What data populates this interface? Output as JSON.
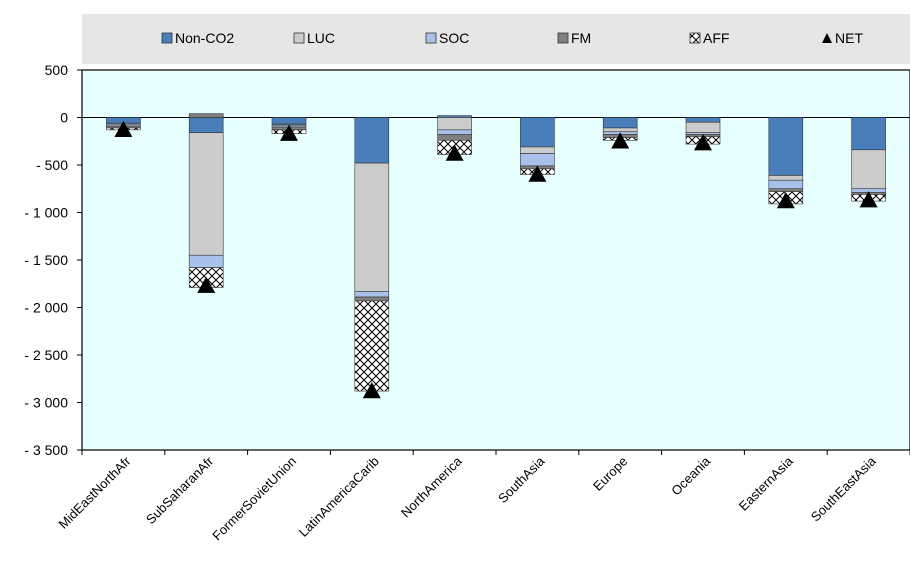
{
  "chart_data": {
    "type": "bar",
    "stacked": true,
    "categories": [
      "MidEastNorthAfr",
      "SubSaharanAfr",
      "FormerSovietUnion",
      "LatinAmericaCarib",
      "NorthAmerica",
      "SouthAsia",
      "Europe",
      "Oceania",
      "EasternAsia",
      "SouthEastAsia"
    ],
    "series": [
      {
        "name": "Non-CO2",
        "color": "#4a7ebb",
        "pattern": "solid",
        "values": [
          -60,
          -160,
          -70,
          -480,
          20,
          -310,
          -110,
          -50,
          -610,
          -340
        ]
      },
      {
        "name": "LUC",
        "color": "#cccccc",
        "pattern": "solid",
        "values": [
          -10,
          -1290,
          -10,
          -1350,
          -130,
          -70,
          -40,
          -110,
          -50,
          -410
        ]
      },
      {
        "name": "SOC",
        "color": "#a9c1ea",
        "pattern": "solid",
        "values": [
          -20,
          -130,
          -20,
          -60,
          -50,
          -130,
          -30,
          -20,
          -90,
          -40
        ]
      },
      {
        "name": "FM",
        "color": "#7f7f7f",
        "pattern": "solid",
        "values": [
          -20,
          40,
          -30,
          -40,
          -60,
          -30,
          -30,
          -20,
          -30,
          -20
        ]
      },
      {
        "name": "AFF",
        "color": "#ffffff",
        "pattern": "crosshatch",
        "values": [
          -20,
          -210,
          -40,
          -950,
          -150,
          -60,
          -30,
          -80,
          -130,
          -70
        ]
      }
    ],
    "net": {
      "name": "NET",
      "marker": "triangle",
      "values": [
        -130,
        -1770,
        -170,
        -2880,
        -380,
        -600,
        -250,
        -270,
        -880,
        -870
      ]
    },
    "ylim": [
      -3500,
      500
    ],
    "yticks": [
      500,
      0,
      -500,
      -1000,
      -1500,
      -2000,
      -2500,
      -3000,
      -3500
    ],
    "ytick_labels": [
      "500",
      "0",
      "- 500",
      "- 1 000",
      "- 1 500",
      "- 2 000",
      "- 2 500",
      "- 3 000",
      "- 3 500"
    ],
    "legend_position": "top",
    "grid": false
  }
}
